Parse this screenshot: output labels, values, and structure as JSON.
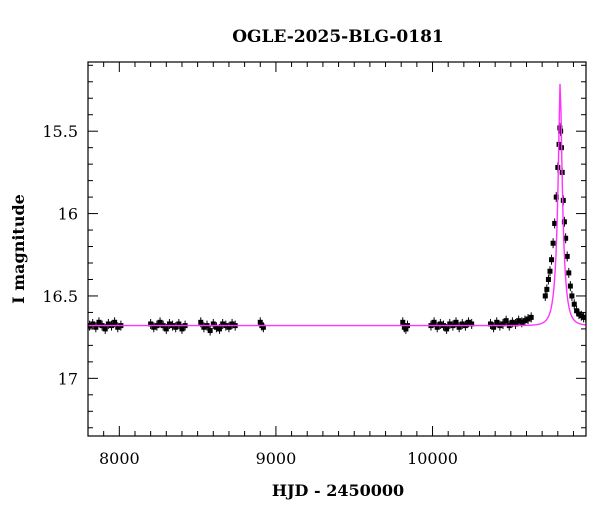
{
  "chart_data": {
    "type": "scatter",
    "title": "OGLE-2025-BLG-0181",
    "xlabel": "HJD - 2450000",
    "ylabel": "I magnitude",
    "xlim": [
      7800,
      10980
    ],
    "ylim": [
      17.35,
      15.08
    ],
    "y_inverted": true,
    "grid": false,
    "legend": "none",
    "x_ticks": [
      8000,
      9000,
      10000
    ],
    "x_tick_labels": [
      "8000",
      "9000",
      "10000"
    ],
    "y_ticks": [
      15.5,
      16,
      16.5,
      17
    ],
    "y_tick_labels": [
      "15.5",
      "16",
      "16.5",
      "17"
    ],
    "baseline_mag": 16.68,
    "series": [
      {
        "kind": "points",
        "color": "#000000",
        "points": [
          [
            7810,
            16.68
          ],
          [
            7830,
            16.67
          ],
          [
            7850,
            16.69
          ],
          [
            7870,
            16.66
          ],
          [
            7890,
            16.68
          ],
          [
            7910,
            16.7
          ],
          [
            7930,
            16.67
          ],
          [
            7950,
            16.68
          ],
          [
            7970,
            16.66
          ],
          [
            7990,
            16.69
          ],
          [
            8010,
            16.68
          ],
          [
            8200,
            16.67
          ],
          [
            8220,
            16.69
          ],
          [
            8240,
            16.68
          ],
          [
            8260,
            16.66
          ],
          [
            8280,
            16.68
          ],
          [
            8300,
            16.7
          ],
          [
            8320,
            16.67
          ],
          [
            8340,
            16.68
          ],
          [
            8360,
            16.69
          ],
          [
            8380,
            16.67
          ],
          [
            8400,
            16.7
          ],
          [
            8420,
            16.68
          ],
          [
            8520,
            16.66
          ],
          [
            8540,
            16.69
          ],
          [
            8560,
            16.68
          ],
          [
            8580,
            16.71
          ],
          [
            8600,
            16.67
          ],
          [
            8620,
            16.69
          ],
          [
            8640,
            16.7
          ],
          [
            8660,
            16.67
          ],
          [
            8680,
            16.68
          ],
          [
            8700,
            16.69
          ],
          [
            8720,
            16.67
          ],
          [
            8740,
            16.68
          ],
          [
            8900,
            16.66
          ],
          [
            8910,
            16.68
          ],
          [
            8920,
            16.69
          ],
          [
            9810,
            16.66
          ],
          [
            9820,
            16.69
          ],
          [
            9830,
            16.7
          ],
          [
            9840,
            16.68
          ],
          [
            9990,
            16.68
          ],
          [
            10010,
            16.66
          ],
          [
            10030,
            16.69
          ],
          [
            10050,
            16.67
          ],
          [
            10070,
            16.68
          ],
          [
            10090,
            16.7
          ],
          [
            10110,
            16.67
          ],
          [
            10130,
            16.68
          ],
          [
            10150,
            16.66
          ],
          [
            10170,
            16.69
          ],
          [
            10190,
            16.67
          ],
          [
            10210,
            16.68
          ],
          [
            10230,
            16.66
          ],
          [
            10250,
            16.67
          ],
          [
            10370,
            16.67
          ],
          [
            10390,
            16.69
          ],
          [
            10410,
            16.66
          ],
          [
            10430,
            16.68
          ],
          [
            10450,
            16.67
          ],
          [
            10470,
            16.65
          ],
          [
            10490,
            16.68
          ],
          [
            10510,
            16.66
          ],
          [
            10530,
            16.67
          ],
          [
            10550,
            16.65
          ],
          [
            10570,
            16.66
          ],
          [
            10590,
            16.65
          ],
          [
            10610,
            16.64
          ],
          [
            10630,
            16.63
          ],
          [
            10720,
            16.5
          ],
          [
            10730,
            16.46
          ],
          [
            10740,
            16.4
          ],
          [
            10750,
            16.35
          ],
          [
            10760,
            16.28
          ],
          [
            10770,
            16.18
          ],
          [
            10780,
            16.06
          ],
          [
            10790,
            15.9
          ],
          [
            10800,
            15.72
          ],
          [
            10808,
            15.58
          ],
          [
            10813,
            15.48
          ],
          [
            10818,
            15.5
          ],
          [
            10823,
            15.6
          ],
          [
            10828,
            15.75
          ],
          [
            10835,
            15.92
          ],
          [
            10842,
            16.05
          ],
          [
            10850,
            16.15
          ],
          [
            10860,
            16.26
          ],
          [
            10870,
            16.36
          ],
          [
            10880,
            16.44
          ],
          [
            10890,
            16.5
          ],
          [
            10905,
            16.55
          ],
          [
            10920,
            16.59
          ],
          [
            10935,
            16.61
          ],
          [
            10950,
            16.62
          ],
          [
            10965,
            16.63
          ],
          [
            10978,
            16.63
          ]
        ]
      },
      {
        "kind": "model-curve",
        "color": "#ff33ff",
        "t0": 10815,
        "tE": 40,
        "u0": 0.2,
        "blend_fraction": 0.71
      }
    ]
  }
}
